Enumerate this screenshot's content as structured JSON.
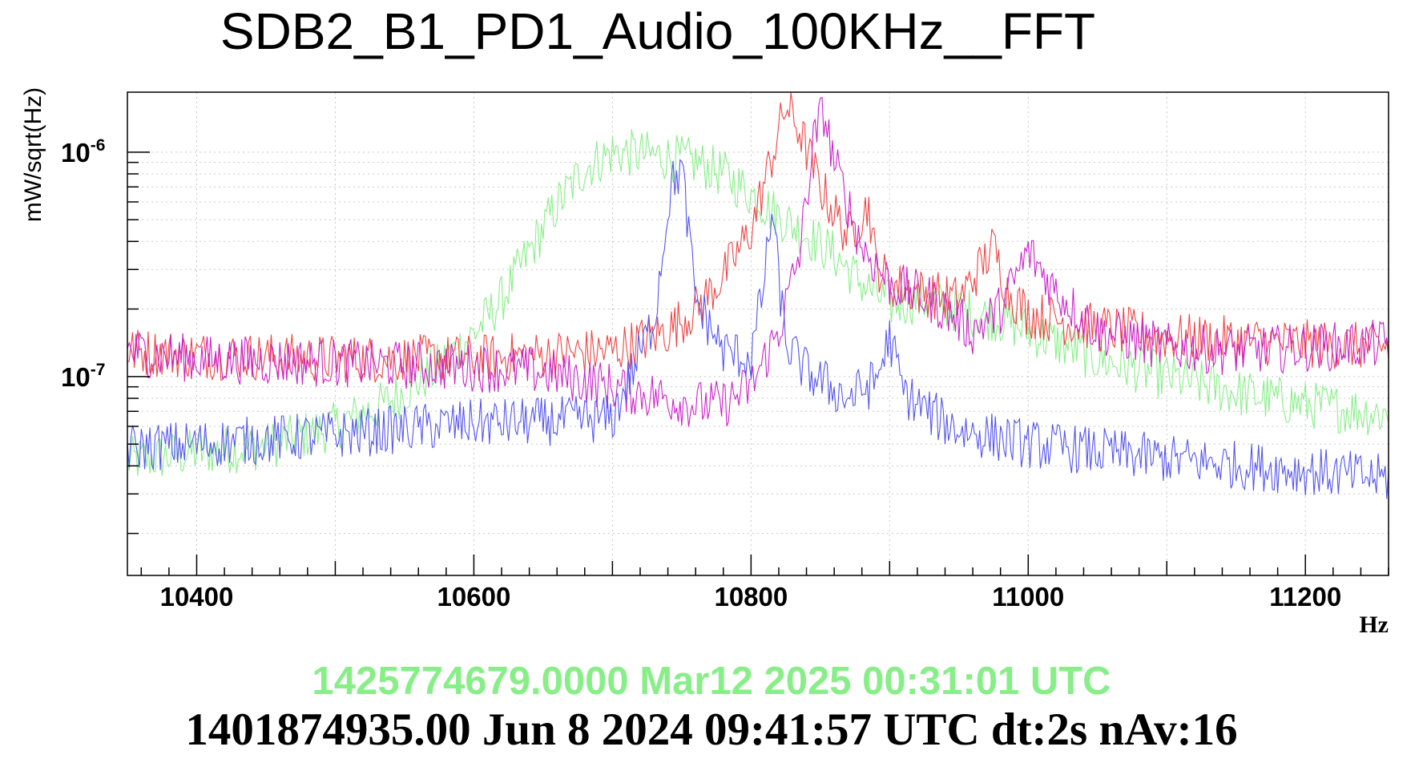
{
  "chart_data": {
    "type": "line",
    "title": "SDB2_B1_PD1_Audio_100KHz__FFT",
    "xlabel": "Hz",
    "ylabel": "mW/sqrt(Hz)",
    "xlim": [
      10350,
      11260
    ],
    "ylim": [
      1.3e-08,
      1.85e-06
    ],
    "yscale": "log",
    "grid": true,
    "x_ticks": [
      "10400",
      "10600",
      "10800",
      "11000",
      "11200"
    ],
    "y_ticks": [
      {
        "base": "10",
        "exp": "-7",
        "value": 1e-07
      },
      {
        "base": "10",
        "exp": "-6",
        "value": 1e-06
      }
    ],
    "timestamp_current": "1425774679.0000 Mar12 2025 00:31:01 UTC",
    "timestamp_reference": "1401874935.00 Jun 8 2024 09:41:57 UTC dt:2s nAv:16",
    "series": [
      {
        "color": "#88ee88",
        "x": [
          10350,
          10400,
          10450,
          10500,
          10540,
          10570,
          10600,
          10620,
          10640,
          10660,
          10680,
          10700,
          10720,
          10740,
          10760,
          10780,
          10800,
          10820,
          10840,
          10860,
          10880,
          10900,
          10920,
          10950,
          10980,
          11000,
          11050,
          11100,
          11150,
          11200,
          11260
        ],
        "y": [
          4.2e-08,
          4.6e-08,
          4.9e-08,
          6e-08,
          7.8e-08,
          1.05e-07,
          1.55e-07,
          2.2e-07,
          3.6e-07,
          5.8e-07,
          8.5e-07,
          1e-06,
          9.8e-07,
          9.5e-07,
          9e-07,
          8e-07,
          6.5e-07,
          5.2e-07,
          4.3e-07,
          3.5e-07,
          2.6e-07,
          2.1e-07,
          2.2e-07,
          2e-07,
          1.8e-07,
          1.6e-07,
          1.2e-07,
          1e-07,
          8.5e-08,
          7.5e-08,
          6.8e-08
        ]
      },
      {
        "color": "#ee4444",
        "x": [
          10350,
          10400,
          10500,
          10600,
          10700,
          10740,
          10760,
          10780,
          10800,
          10815,
          10825,
          10835,
          10850,
          10870,
          10885,
          10890,
          10900,
          10920,
          10950,
          10975,
          10985,
          11000,
          11050,
          11100,
          11200,
          11260
        ],
        "y": [
          1.3e-07,
          1.25e-07,
          1.2e-07,
          1.2e-07,
          1.3e-07,
          1.6e-07,
          2e-07,
          2.8e-07,
          4.5e-07,
          9.5e-07,
          1.6e-06,
          1.25e-06,
          7e-07,
          4.2e-07,
          5.8e-07,
          3.2e-07,
          2.6e-07,
          2.4e-07,
          2.2e-07,
          3.8e-07,
          2.4e-07,
          1.9e-07,
          1.65e-07,
          1.5e-07,
          1.4e-07,
          1.35e-07
        ]
      },
      {
        "color": "#cc22cc",
        "x": [
          10350,
          10400,
          10500,
          10600,
          10650,
          10700,
          10740,
          10760,
          10780,
          10800,
          10820,
          10835,
          10845,
          10852,
          10860,
          10880,
          10900,
          10930,
          10960,
          10980,
          11000,
          11020,
          11050,
          11100,
          11150,
          11200,
          11260
        ],
        "y": [
          1.3e-07,
          1.2e-07,
          1.15e-07,
          1.1e-07,
          1.05e-07,
          9e-08,
          8e-08,
          7.5e-08,
          7.5e-08,
          9e-08,
          1.6e-07,
          3.5e-07,
          1.1e-06,
          1.55e-06,
          9e-07,
          3.8e-07,
          2.6e-07,
          2.2e-07,
          1.6e-07,
          2e-07,
          3.6e-07,
          2.4e-07,
          1.6e-07,
          1.35e-07,
          1.3e-07,
          1.35e-07,
          1.4e-07
        ]
      },
      {
        "color": "#5555ee",
        "x": [
          10350,
          10400,
          10500,
          10600,
          10650,
          10700,
          10730,
          10742,
          10750,
          10760,
          10780,
          10800,
          10810,
          10815,
          10825,
          10840,
          10870,
          10890,
          10900,
          10910,
          10930,
          10950,
          11000,
          11100,
          11200,
          11260
        ],
        "y": [
          4.8e-08,
          5e-08,
          5.5e-08,
          6.2e-08,
          6.3e-08,
          6.5e-08,
          1.8e-07,
          7e-07,
          8.5e-07,
          2.2e-07,
          1.3e-07,
          1.2e-07,
          2.8e-07,
          5.5e-07,
          1.4e-07,
          1.05e-07,
          8e-08,
          9.5e-08,
          1.5e-07,
          8.5e-08,
          6.8e-08,
          5.8e-08,
          5e-08,
          4.3e-08,
          3.8e-08,
          3.5e-08
        ]
      }
    ]
  }
}
